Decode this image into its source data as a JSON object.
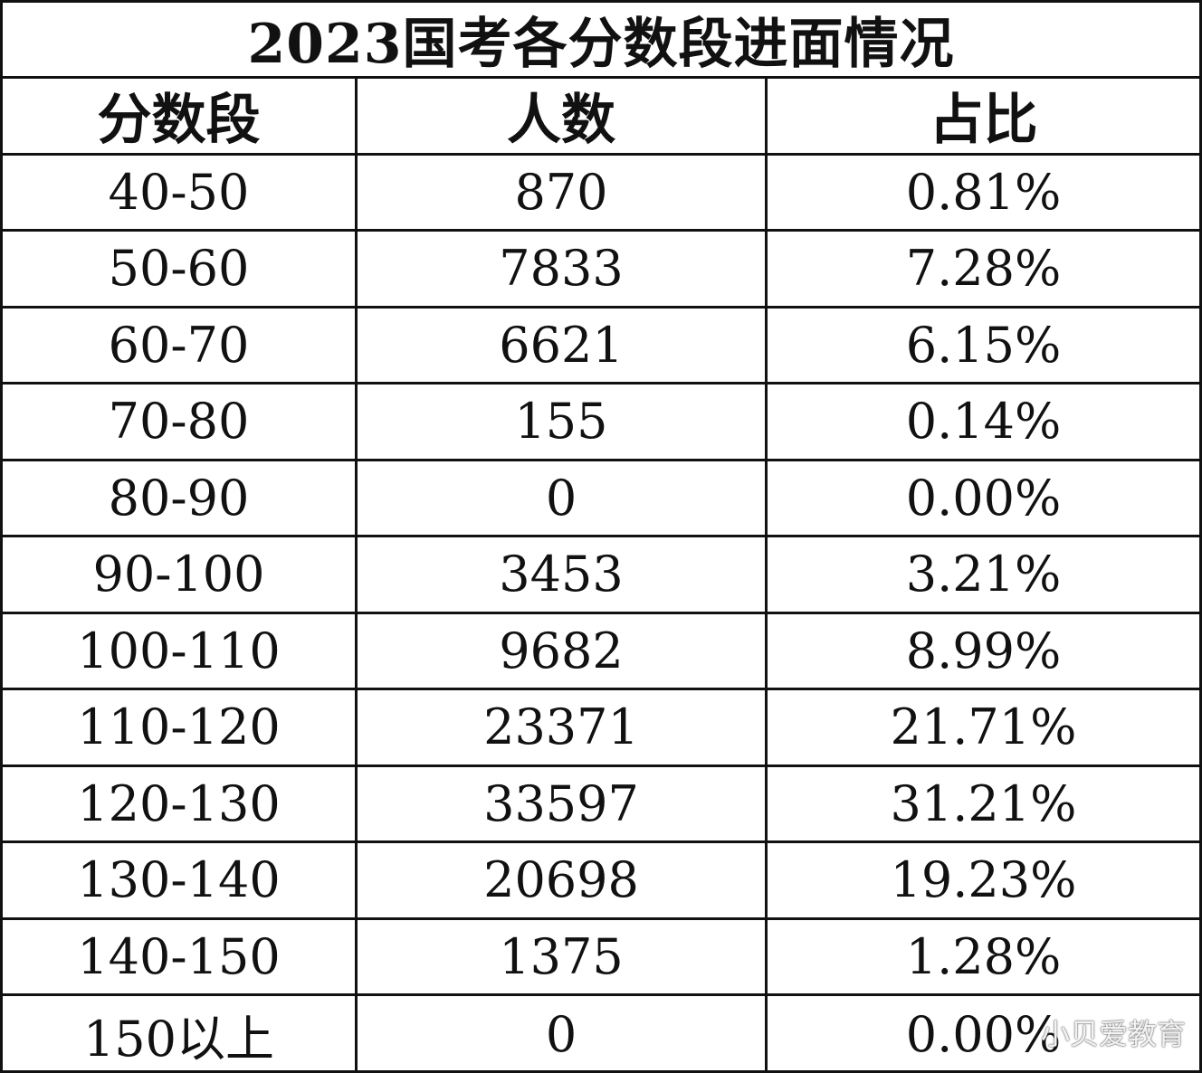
{
  "title": "2023国考各分数段进面情况",
  "headers": [
    "分数段",
    "人数",
    "占比"
  ],
  "rows": [
    [
      "40-50",
      "870",
      "0.81%"
    ],
    [
      "50-60",
      "7833",
      "7.28%"
    ],
    [
      "60-70",
      "6621",
      "6.15%"
    ],
    [
      "70-80",
      "155",
      "0.14%"
    ],
    [
      "80-90",
      "0",
      "0.00%"
    ],
    [
      "90-100",
      "3453",
      "3.21%"
    ],
    [
      "100-110",
      "9682",
      "8.99%"
    ],
    [
      "110-120",
      "23371",
      "21.71%"
    ],
    [
      "120-130",
      "33597",
      "31.21%"
    ],
    [
      "130-140",
      "20698",
      "19.23%"
    ],
    [
      "140-150",
      "1375",
      "1.28%"
    ],
    [
      "150以上",
      "0",
      "0.00%"
    ]
  ],
  "watermark": "小贝爱教育"
}
